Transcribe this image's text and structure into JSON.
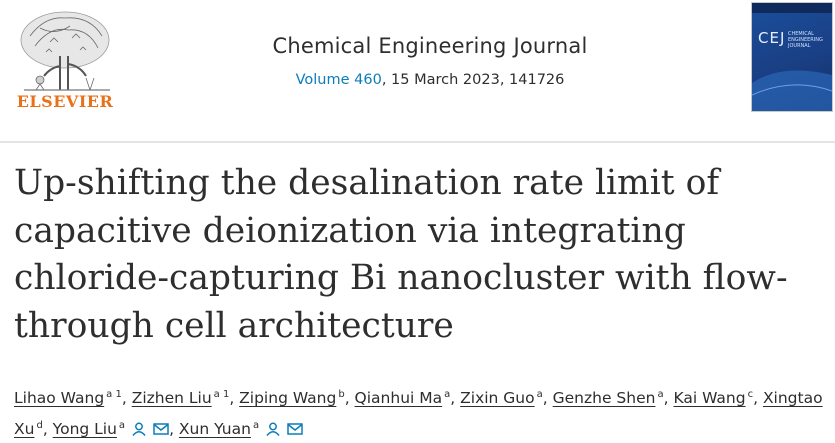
{
  "header": {
    "publisher": "ELSEVIER",
    "journal_name": "Chemical Engineering Journal",
    "volume": "Volume 460",
    "citation_rest": ", 15 March 2023, 141726",
    "cover_title": "CEJ",
    "cover_subtitle": "CHEMICAL ENGINEERING JOURNAL"
  },
  "article": {
    "title": "Up-shifting the desalination rate limit of capacitive deionization via integrating chloride-capturing Bi nanocluster with flow-through cell architecture"
  },
  "authors": [
    {
      "name": "Lihao Wang",
      "sup": "a 1"
    },
    {
      "name": "Zizhen Liu",
      "sup": "a 1"
    },
    {
      "name": "Ziping Wang",
      "sup": "b"
    },
    {
      "name": "Qianhui Ma",
      "sup": "a"
    },
    {
      "name": "Zixin Guo",
      "sup": "a"
    },
    {
      "name": "Genzhe Shen",
      "sup": "a"
    },
    {
      "name": "Kai Wang",
      "sup": "c"
    },
    {
      "name": "Xingtao Xu",
      "sup": "d"
    },
    {
      "name": "Yong Liu",
      "sup": "a"
    },
    {
      "name": "Xun Yuan",
      "sup": "a"
    }
  ],
  "colors": {
    "accent_link": "#0c7dbb",
    "elsevier_orange": "#e9711c",
    "text": "#2e2e2e"
  },
  "icons": [
    "person-icon",
    "envelope-icon"
  ]
}
